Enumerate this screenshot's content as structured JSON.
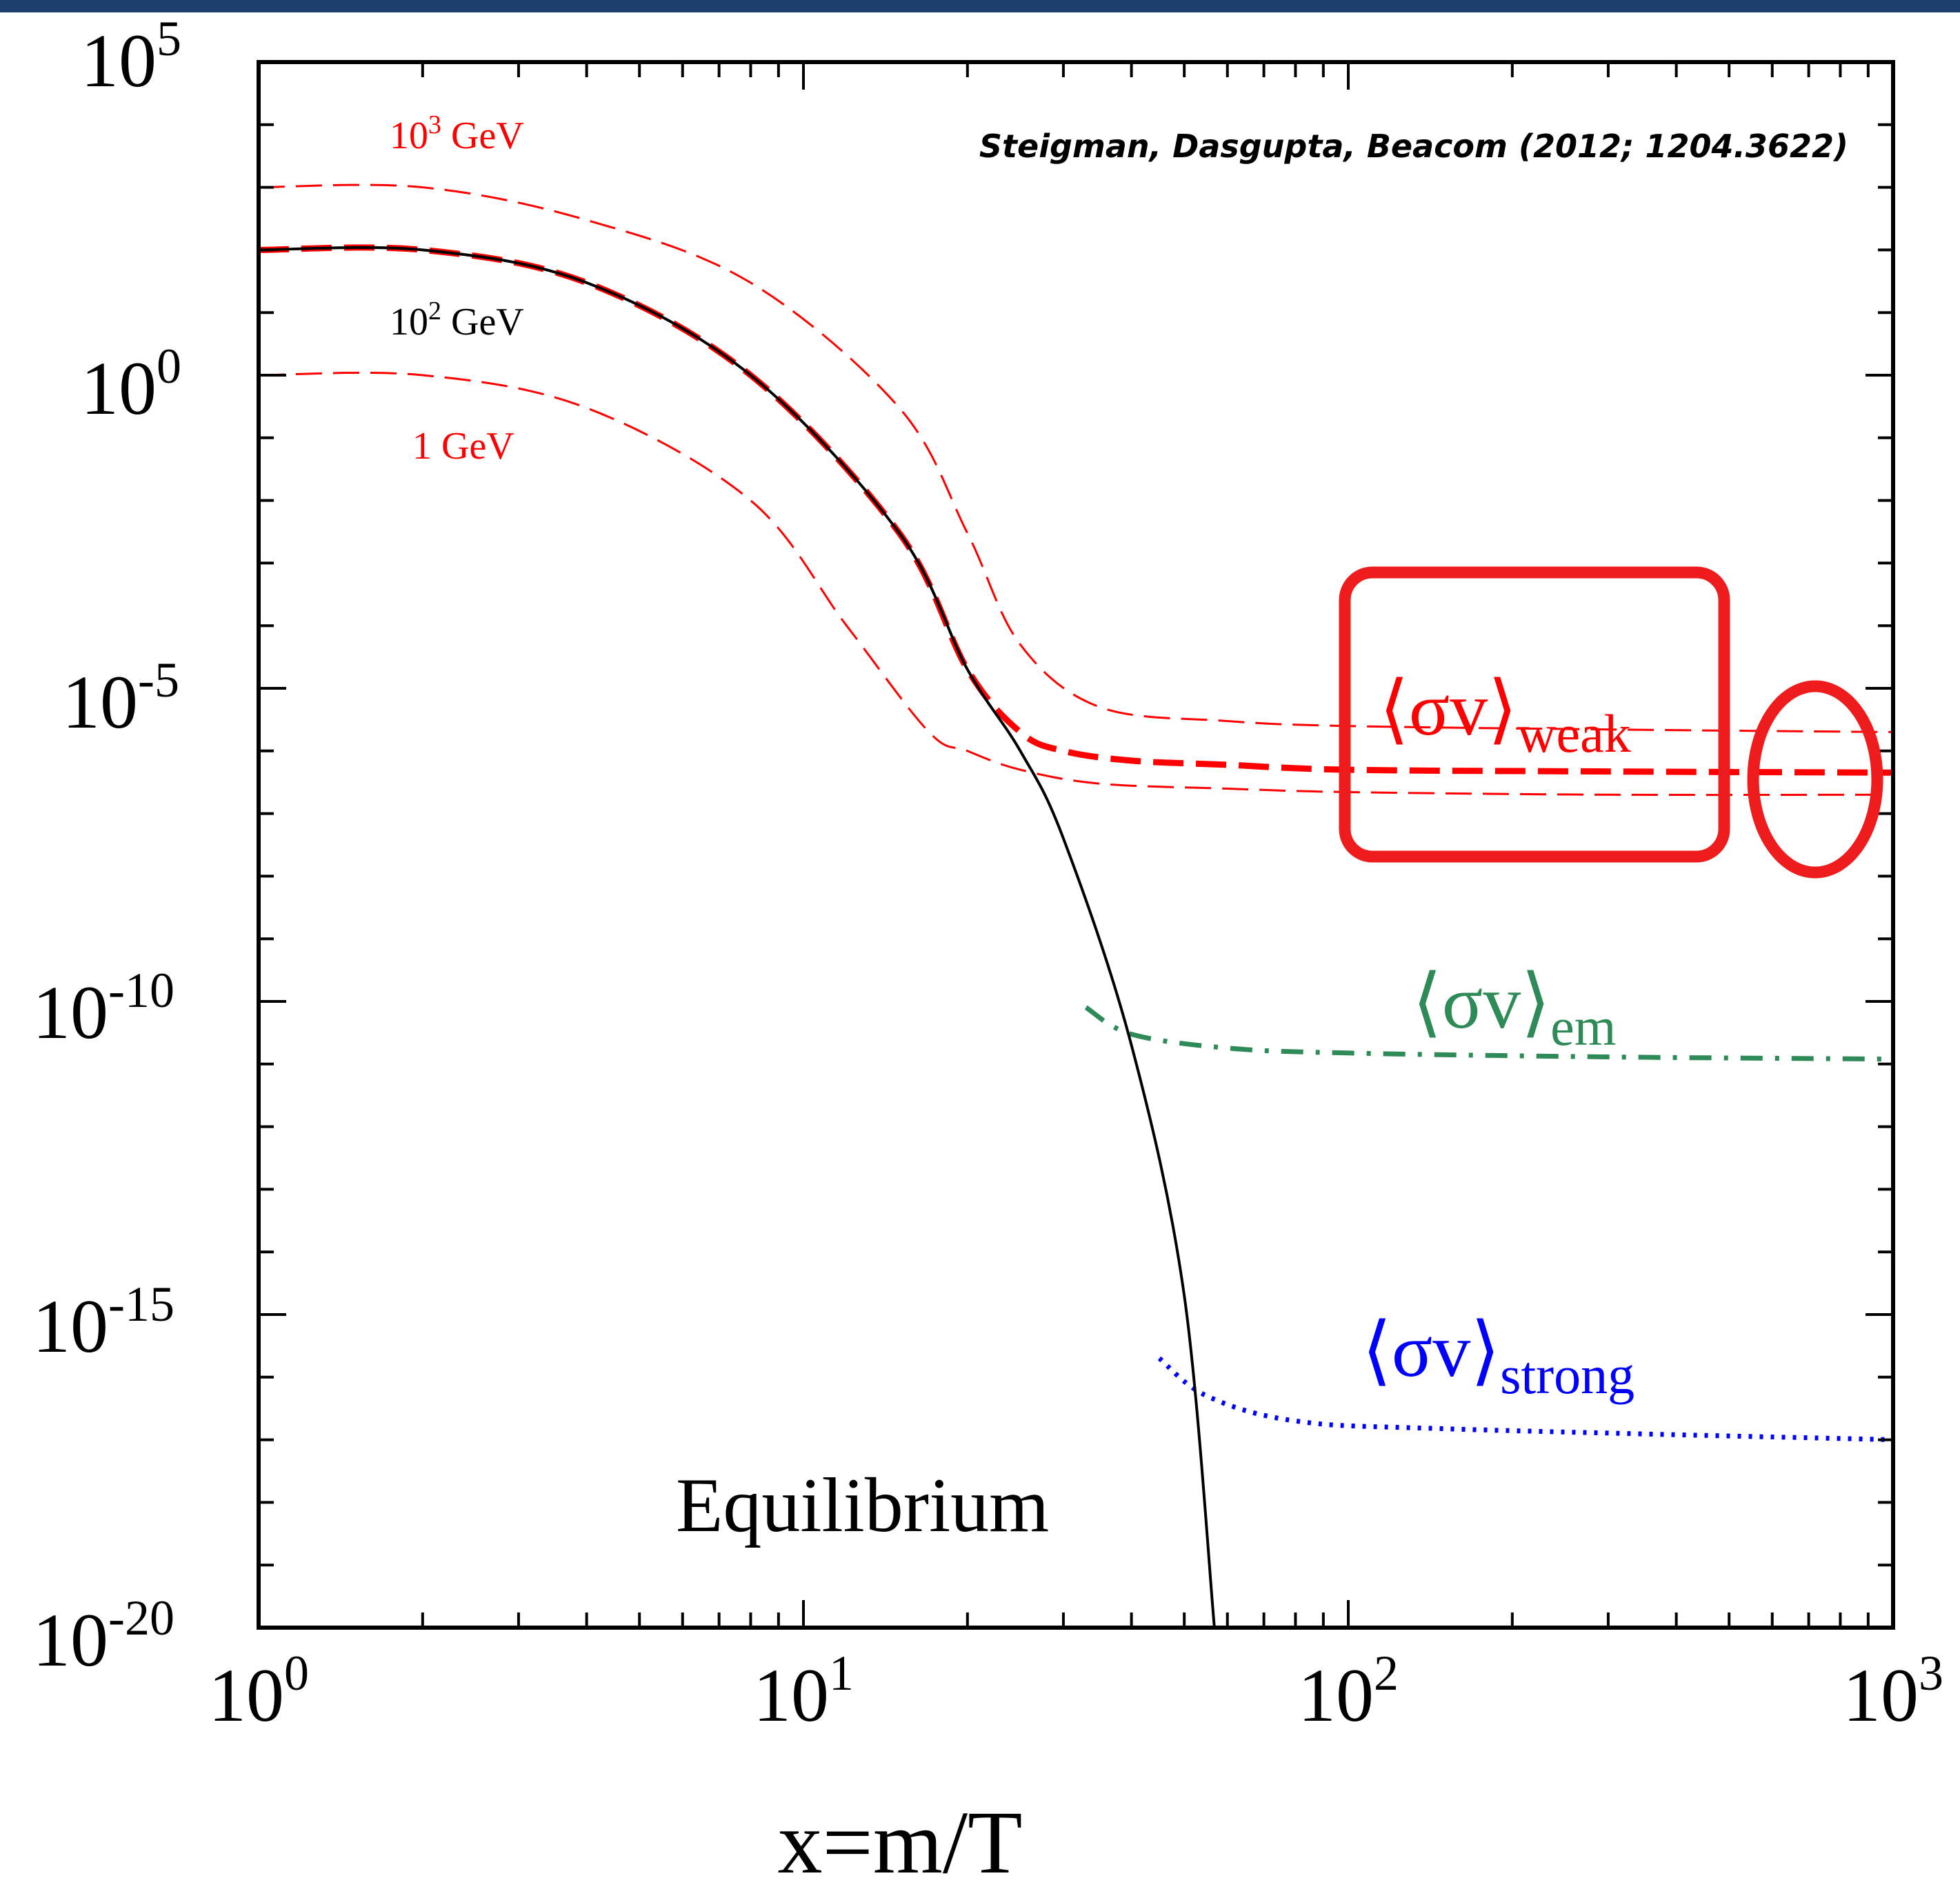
{
  "topbar_color": "#1d3f6e",
  "credit": "Steigman, Dasgupta, Beacom (2012; 1204.3622)",
  "chart_data": {
    "type": "line",
    "xscale": "log",
    "yscale": "log",
    "xlim": [
      1,
      1000
    ],
    "ylim": [
      1e-20,
      100000.0
    ],
    "xlabel": "x=m/T",
    "ylabel": "",
    "x_ticks": [
      {
        "base": "10",
        "exp": "0",
        "value": 1
      },
      {
        "base": "10",
        "exp": "1",
        "value": 10
      },
      {
        "base": "10",
        "exp": "2",
        "value": 100
      },
      {
        "base": "10",
        "exp": "3",
        "value": 1000
      }
    ],
    "y_ticks": [
      {
        "base": "10",
        "exp": "5",
        "value": 100000.0
      },
      {
        "base": "10",
        "exp": "0",
        "value": 1
      },
      {
        "base": "10",
        "exp": "-5",
        "value": 1e-05
      },
      {
        "base": "10",
        "exp": "-10",
        "value": 1e-10
      },
      {
        "base": "10",
        "exp": "-15",
        "value": 1e-15
      },
      {
        "base": "10",
        "exp": "-20",
        "value": 1e-20
      }
    ],
    "series": [
      {
        "label": "10^3 GeV",
        "color": "#ff0000",
        "style": "dashed-thin",
        "x": [
          1,
          2,
          4,
          8,
          15,
          20,
          25,
          35,
          60,
          100,
          300,
          1000
        ],
        "y": [
          1000,
          1000,
          300,
          30,
          0.3,
          0.003,
          5e-05,
          5e-06,
          3e-06,
          2.5e-06,
          2.2e-06,
          2e-06
        ]
      },
      {
        "label": "1 GeV",
        "color": "#ff0000",
        "style": "dashed-thin",
        "x": [
          1,
          2,
          4,
          8,
          12,
          17,
          20,
          25,
          35,
          60,
          100,
          300,
          1000
        ],
        "y": [
          1,
          1,
          0.3,
          0.01,
          0.0001,
          2e-06,
          1e-06,
          5e-07,
          3e-07,
          2.5e-07,
          2.2e-07,
          2e-07,
          2e-07
        ]
      },
      {
        "label": "weak",
        "color": "#ff0000",
        "style": "dashed-thick",
        "x": [
          1,
          2,
          4,
          8,
          15,
          20,
          25,
          30,
          40,
          60,
          100,
          300,
          1000
        ],
        "y": [
          100,
          100,
          30,
          1,
          0.003,
          2e-05,
          2e-06,
          1e-06,
          7e-07,
          6e-07,
          5e-07,
          4.7e-07,
          4.5e-07
        ]
      },
      {
        "label": "em",
        "color": "#2e8b57",
        "style": "dashdot",
        "x": [
          33,
          40,
          60,
          100,
          300,
          1000
        ],
        "y": [
          8e-11,
          3e-11,
          1.8e-11,
          1.5e-11,
          1.3e-11,
          1.2e-11
        ]
      },
      {
        "label": "strong",
        "color": "#0000ff",
        "style": "dotted",
        "x": [
          45,
          55,
          80,
          150,
          1000
        ],
        "y": [
          2e-16,
          5e-17,
          2e-17,
          1.5e-17,
          1e-17
        ]
      },
      {
        "label": "Equilibrium",
        "color": "#000000",
        "style": "solid",
        "x": [
          1,
          2,
          4,
          8,
          15,
          20,
          25,
          30,
          40,
          50,
          56.8
        ],
        "y": [
          100,
          100,
          30,
          1,
          0.003,
          2e-05,
          1e-06,
          4e-08,
          2e-11,
          2e-15,
          1e-20
        ]
      }
    ],
    "annotations": {
      "gev1000": {
        "base": "10",
        "exp": "3",
        "unit": " GeV",
        "color": "#ff0000"
      },
      "gev100": {
        "base": "10",
        "exp": "2",
        "unit": " GeV",
        "color": "#000000"
      },
      "gev1": {
        "text": "1 GeV",
        "color": "#ff0000"
      },
      "weak": {
        "main": "⟨σv⟩",
        "sub": "weak",
        "color": "#ff0000"
      },
      "em": {
        "main": "⟨σv⟩",
        "sub": "em",
        "color": "#2e8b57"
      },
      "strong": {
        "main": "⟨σv⟩",
        "sub": "strong",
        "color": "#0000ff"
      },
      "equilibrium": {
        "text": "Equilibrium",
        "color": "#000000"
      }
    },
    "highlights": {
      "color": "#ee1c1c"
    }
  }
}
